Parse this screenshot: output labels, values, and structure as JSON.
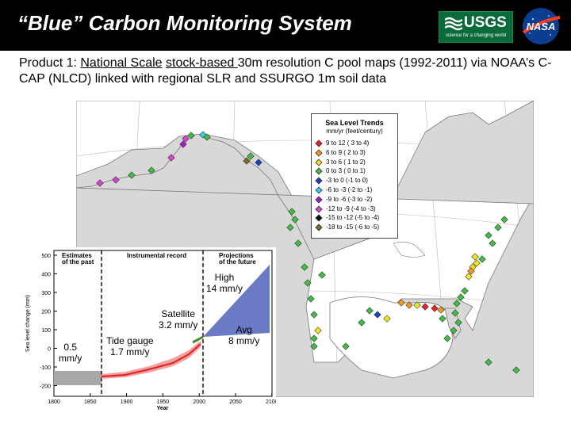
{
  "header": {
    "title": "“Blue” Carbon Monitoring System",
    "usgs_name": "USGS",
    "usgs_tagline": "science for a changing world",
    "nasa_name": "NASA"
  },
  "subtitle": {
    "prefix": "Product 1: ",
    "u1": "National Scale",
    "mid1": " ",
    "u2": "stock-based ",
    "mid2": "30m resolution C pool maps (1992-2011) via NOAA’s C-CAP (NLCD) linked with regional SLR and SSURGO 1m soil data"
  },
  "legend": {
    "title": "Sea Level Trends",
    "subtitle": "mm/yr (feet/century)",
    "items": [
      {
        "label": "9 to 12  ( 3 to  4)",
        "color": "#e8202a"
      },
      {
        "label": "6 to  9  ( 2 to  3)",
        "color": "#f29a1f"
      },
      {
        "label": "3 to  6  ( 1 to  2)",
        "color": "#f5e61c"
      },
      {
        "label": "0 to  3  ( 0 to  1)",
        "color": "#3fbf3f"
      },
      {
        "label": "-3 to  0  (-1 to  0)",
        "color": "#1f3fbf"
      },
      {
        "label": "-6 to  -3  (-2 to -1)",
        "color": "#38d0e8"
      },
      {
        "label": "-9 to  -6  (-3 to -2)",
        "color": "#a020c0"
      },
      {
        "label": "-12 to  -9  (-4 to -3)",
        "color": "#e040d0"
      },
      {
        "label": "-15 to -12  (-5 to -4)",
        "color": "#111111"
      },
      {
        "label": "-18 to -15  (-6 to -5)",
        "color": "#7a6a2a"
      }
    ]
  },
  "inset": {
    "hdr_past": "Estimates\nof the past",
    "hdr_record": "Instrumental record",
    "hdr_future": "Projections\nof the future",
    "ylabel": "Sea level change (mm)",
    "xlabel": "Year",
    "yticks": [
      "500",
      "400",
      "300",
      "200",
      "100",
      "0",
      "-100",
      "-200"
    ],
    "xticks": [
      "1800",
      "1850",
      "1900",
      "1950",
      "2000",
      "2050",
      "2100"
    ],
    "ann_high": "High\n14 mm/y",
    "ann_satellite": "Satellite\n3.2 mm/y",
    "ann_tide": "Tide gauge\n1.7 mm/y",
    "ann_avg": "Avg\n8 mm/y",
    "ann_past": "0.5\nmm/y"
  }
}
